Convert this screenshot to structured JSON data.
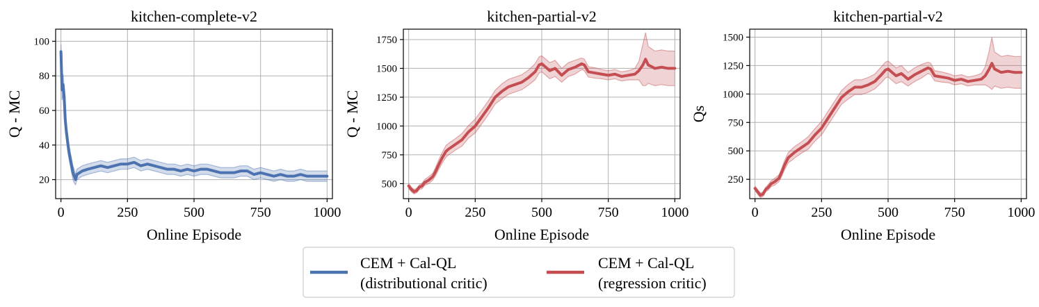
{
  "chart_data": [
    {
      "type": "line",
      "title": "kitchen-complete-v2",
      "xlabel": "Online Episode",
      "ylabel": "Q - MC",
      "xlim": [
        -20,
        1020
      ],
      "ylim": [
        9,
        107
      ],
      "xticks": [
        0,
        250,
        500,
        750,
        1000
      ],
      "yticks": [
        20,
        40,
        60,
        80,
        100
      ],
      "grid": true,
      "series": [
        {
          "name": "CEM + Cal-QL (distributional critic)",
          "color": "#4c72b0",
          "x": [
            0,
            4,
            8,
            12,
            16,
            20,
            25,
            30,
            35,
            40,
            45,
            50,
            55,
            60,
            70,
            80,
            100,
            125,
            150,
            175,
            200,
            225,
            250,
            275,
            300,
            325,
            350,
            375,
            400,
            425,
            450,
            475,
            500,
            525,
            550,
            575,
            600,
            625,
            650,
            675,
            700,
            725,
            750,
            775,
            800,
            825,
            850,
            875,
            900,
            925,
            950,
            975,
            1000
          ],
          "y": [
            94,
            72,
            75,
            68,
            55,
            48,
            42,
            36,
            32,
            28,
            24,
            22,
            20,
            23,
            24,
            25,
            26,
            27,
            28,
            27,
            28,
            29,
            29,
            30,
            28,
            29,
            28,
            27,
            26,
            26,
            25,
            26,
            25,
            26,
            26,
            25,
            24,
            24,
            24,
            25,
            25,
            23,
            24,
            23,
            22,
            23,
            22,
            22,
            23,
            22,
            22,
            22,
            22
          ],
          "band": [
            4,
            6,
            6,
            6,
            6,
            5,
            5,
            4,
            4,
            4,
            4,
            4,
            3,
            3,
            3,
            3,
            3,
            3,
            3,
            3,
            3,
            3,
            3,
            3,
            3,
            3,
            3,
            3,
            3,
            3,
            3,
            3,
            3,
            3,
            3,
            3,
            3,
            3,
            3,
            3,
            3,
            3,
            3,
            3,
            3,
            3,
            3,
            3,
            3,
            3,
            3,
            3,
            3
          ]
        }
      ]
    },
    {
      "type": "line",
      "title": "kitchen-partial-v2",
      "xlabel": "Online Episode",
      "ylabel": "Q - MC",
      "xlim": [
        -20,
        1020
      ],
      "ylim": [
        370,
        1840
      ],
      "xticks": [
        0,
        250,
        500,
        750,
        1000
      ],
      "yticks": [
        500,
        750,
        1000,
        1250,
        1500,
        1750
      ],
      "grid": true,
      "series": [
        {
          "name": "CEM + Cal-QL (regression critic)",
          "color": "#c44e52",
          "x": [
            0,
            10,
            20,
            30,
            40,
            50,
            60,
            75,
            90,
            100,
            110,
            125,
            140,
            150,
            175,
            200,
            225,
            250,
            275,
            300,
            325,
            350,
            375,
            400,
            425,
            450,
            475,
            490,
            500,
            515,
            530,
            550,
            575,
            600,
            625,
            650,
            660,
            675,
            700,
            725,
            750,
            775,
            800,
            825,
            850,
            865,
            880,
            890,
            900,
            925,
            950,
            975,
            1000
          ],
          "y": [
            480,
            450,
            430,
            440,
            470,
            480,
            510,
            530,
            560,
            600,
            650,
            720,
            780,
            800,
            840,
            880,
            950,
            1000,
            1080,
            1160,
            1250,
            1300,
            1340,
            1360,
            1380,
            1420,
            1470,
            1530,
            1540,
            1510,
            1480,
            1500,
            1440,
            1490,
            1510,
            1540,
            1530,
            1470,
            1460,
            1450,
            1440,
            1450,
            1430,
            1440,
            1450,
            1480,
            1530,
            1580,
            1530,
            1500,
            1510,
            1500,
            1500
          ],
          "band": [
            20,
            20,
            20,
            20,
            20,
            25,
            25,
            30,
            30,
            35,
            40,
            45,
            50,
            50,
            50,
            55,
            55,
            60,
            60,
            60,
            60,
            65,
            65,
            65,
            65,
            65,
            70,
            70,
            70,
            70,
            70,
            70,
            60,
            60,
            60,
            50,
            50,
            45,
            45,
            40,
            40,
            40,
            40,
            40,
            50,
            80,
            180,
            230,
            160,
            150,
            150,
            150,
            150
          ]
        }
      ]
    },
    {
      "type": "line",
      "title": "kitchen-partial-v2",
      "xlabel": "Online Episode",
      "ylabel": "Qs",
      "xlim": [
        -20,
        1020
      ],
      "ylim": [
        80,
        1570
      ],
      "xticks": [
        0,
        250,
        500,
        750,
        1000
      ],
      "yticks": [
        250,
        500,
        750,
        1000,
        1250,
        1500
      ],
      "grid": true,
      "series": [
        {
          "name": "CEM + Cal-QL (regression critic)",
          "color": "#c44e52",
          "x": [
            0,
            10,
            20,
            30,
            40,
            50,
            60,
            75,
            90,
            100,
            110,
            125,
            140,
            150,
            175,
            200,
            225,
            250,
            275,
            300,
            325,
            350,
            375,
            400,
            425,
            450,
            475,
            490,
            500,
            515,
            530,
            550,
            575,
            600,
            625,
            650,
            660,
            675,
            700,
            725,
            750,
            775,
            800,
            825,
            850,
            865,
            880,
            890,
            900,
            925,
            950,
            975,
            1000
          ],
          "y": [
            170,
            140,
            110,
            120,
            160,
            180,
            210,
            230,
            260,
            310,
            370,
            440,
            470,
            490,
            530,
            570,
            640,
            700,
            790,
            880,
            970,
            1020,
            1060,
            1060,
            1080,
            1110,
            1170,
            1210,
            1220,
            1190,
            1160,
            1180,
            1130,
            1170,
            1200,
            1230,
            1220,
            1160,
            1150,
            1140,
            1120,
            1130,
            1110,
            1120,
            1130,
            1160,
            1220,
            1270,
            1220,
            1190,
            1200,
            1190,
            1190
          ],
          "band": [
            20,
            20,
            20,
            20,
            20,
            25,
            25,
            30,
            30,
            35,
            40,
            45,
            50,
            50,
            50,
            55,
            55,
            60,
            60,
            60,
            60,
            65,
            65,
            65,
            65,
            65,
            70,
            70,
            70,
            70,
            70,
            70,
            60,
            60,
            60,
            50,
            50,
            45,
            45,
            40,
            40,
            40,
            40,
            40,
            50,
            80,
            160,
            230,
            150,
            140,
            140,
            140,
            140
          ]
        }
      ]
    }
  ],
  "legend": {
    "position": "bottom-center",
    "items": [
      {
        "line1": "CEM + Cal-QL",
        "line2": "(distributional critic)",
        "color": "#4c72b0"
      },
      {
        "line1": "CEM + Cal-QL",
        "line2": "(regression critic)",
        "color": "#c44e52"
      }
    ]
  }
}
